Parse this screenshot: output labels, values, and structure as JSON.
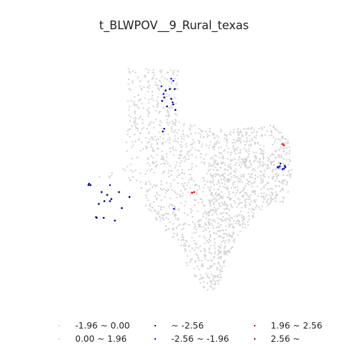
{
  "title": "t_BLWPOV__9_Rural_texas",
  "legend": {
    "items": [
      {
        "label": "-1.96 ~ 0.00",
        "color": "#d3d3d3"
      },
      {
        "label": "~ -2.56",
        "color": "#00008b"
      },
      {
        "label": "1.96 ~ 2.56",
        "color": "#ff0000"
      },
      {
        "label": "0.00 ~ 1.96",
        "color": "#d3d3d3"
      },
      {
        "label": "-2.56 ~ -1.96",
        "color": "#0000ff"
      },
      {
        "label": "2.56 ~",
        "color": "#8b0000"
      }
    ]
  },
  "colors": {
    "background": "#ffffff",
    "neutral": "#d3d3d3",
    "cold_strong": "#00008b",
    "cold": "#0000ff",
    "hot": "#ff0000"
  }
}
